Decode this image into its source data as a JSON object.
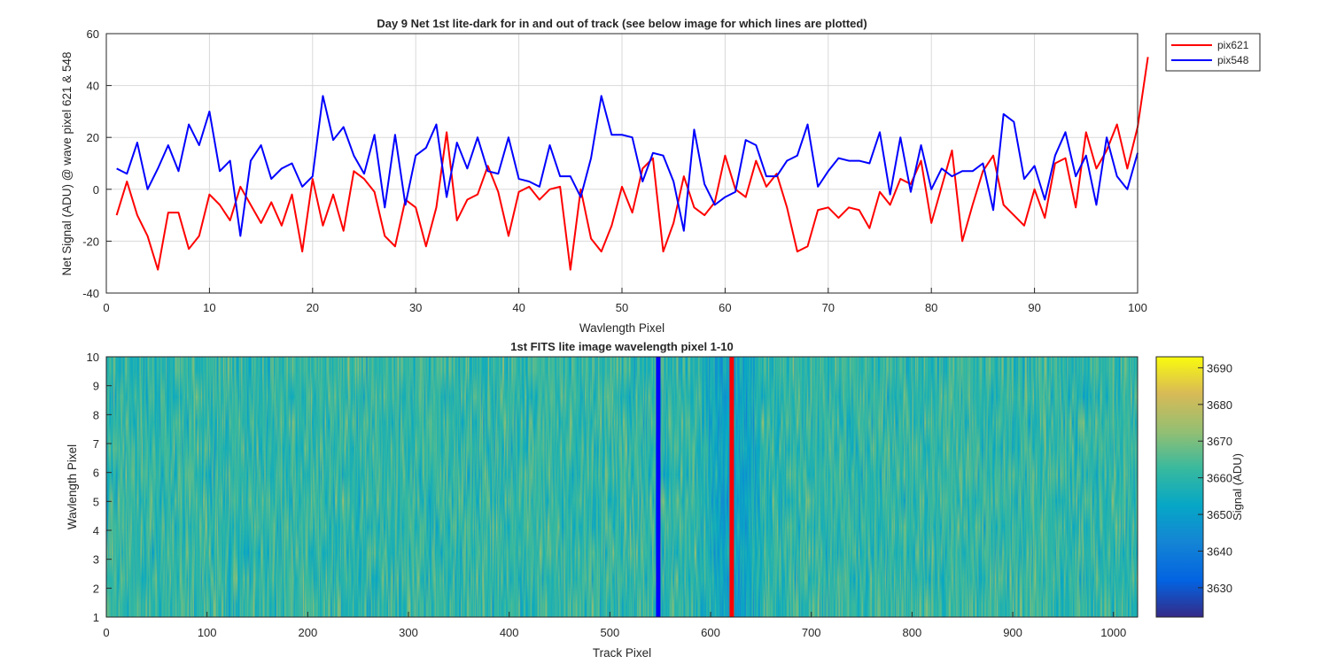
{
  "chart_data": [
    {
      "type": "line",
      "title": "Day 9 Net 1st lite-dark for in and out of track (see below image for which lines are plotted)",
      "xlabel": "Wavlength Pixel",
      "ylabel": "Net Signal (ADU) @ wave pixel 621 & 548",
      "xlim": [
        0,
        100
      ],
      "ylim": [
        -40,
        60
      ],
      "xticks": [
        0,
        10,
        20,
        30,
        40,
        50,
        60,
        70,
        80,
        90,
        100
      ],
      "yticks": [
        -40,
        -20,
        0,
        20,
        40,
        60
      ],
      "grid": true,
      "legend": "top-right, outside",
      "x_start": 1,
      "series": [
        {
          "name": "pix621",
          "color": "#ff0000",
          "values": [
            -10,
            3,
            -10,
            -18,
            -31,
            -9,
            -9,
            -23,
            -18,
            -2,
            -6,
            -12,
            1,
            -6,
            -13,
            -5,
            -14,
            -2,
            -24,
            4,
            -14,
            -2,
            -16,
            7,
            4,
            -1,
            -18,
            -22,
            -4,
            -7,
            -22,
            -7,
            22,
            -12,
            -4,
            -2,
            9,
            -1,
            -18,
            -1,
            1,
            -4,
            0,
            1,
            -31,
            0,
            -19,
            -24,
            -14,
            1,
            -9,
            8,
            12,
            -24,
            -13,
            5,
            -7,
            -10,
            -5,
            13,
            0,
            -3,
            11,
            1,
            6,
            -7,
            -24,
            -22,
            -8,
            -7,
            -11,
            -7,
            -8,
            -15,
            -1,
            -6,
            4,
            2,
            11,
            -13,
            1,
            15,
            -20,
            -6,
            7,
            13,
            -6,
            -10,
            -14,
            0,
            -11,
            10,
            12,
            -7,
            22,
            8,
            15,
            25,
            8,
            24,
            51
          ]
        },
        {
          "name": "pix548",
          "color": "#0000ff",
          "values": [
            8,
            6,
            18,
            0,
            8,
            17,
            7,
            25,
            17,
            30,
            7,
            11,
            -18,
            11,
            17,
            4,
            8,
            10,
            1,
            5,
            36,
            19,
            24,
            13,
            6,
            21,
            -7,
            21,
            -6,
            13,
            16,
            25,
            -3,
            18,
            8,
            20,
            7,
            6,
            20,
            4,
            3,
            1,
            17,
            5,
            5,
            -3,
            12,
            36,
            21,
            21,
            20,
            3,
            14,
            13,
            3,
            -16,
            23,
            2,
            -6,
            -3,
            -1,
            19,
            17,
            5,
            5,
            11,
            13,
            25,
            1,
            7,
            12,
            11,
            11,
            10,
            22,
            -2,
            20,
            -1,
            17,
            0,
            8,
            5,
            7,
            7,
            10,
            -8,
            29,
            26,
            4,
            9,
            -4,
            13,
            22,
            5,
            13,
            -6,
            20,
            5,
            0,
            14
          ]
        }
      ]
    },
    {
      "type": "heatmap",
      "title": "1st FITS lite image wavelength pixel 1-10",
      "xlabel": "Track Pixel",
      "ylabel": "Wavlength Pixel",
      "xlim": [
        0,
        1024
      ],
      "ylim": [
        1,
        10
      ],
      "xticks": [
        0,
        100,
        200,
        300,
        400,
        500,
        600,
        700,
        800,
        900,
        1000
      ],
      "yticks": [
        1,
        2,
        3,
        4,
        5,
        6,
        7,
        8,
        9,
        10
      ],
      "rows": 10,
      "columns": 1024,
      "colormap": "parula",
      "colorbar": {
        "label": "Signal (ADU)",
        "range": [
          3622,
          3693
        ],
        "ticks": [
          3630,
          3640,
          3650,
          3660,
          3670,
          3680,
          3690
        ]
      },
      "marker_lines": [
        {
          "track_pixel": 548,
          "color": "#0000ff"
        },
        {
          "track_pixel": 621,
          "color": "#ff0000"
        }
      ]
    }
  ]
}
